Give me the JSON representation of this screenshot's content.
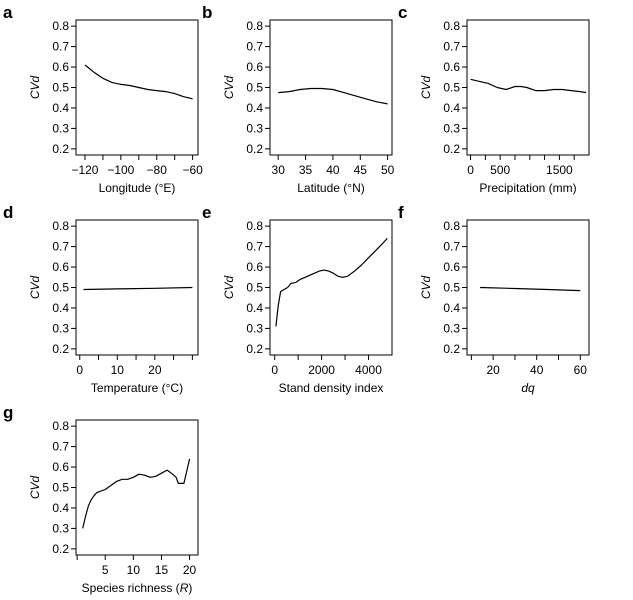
{
  "chart_data": [
    {
      "type": "line",
      "panel": "a",
      "xlabel": "Longitude (°E)",
      "ylabel": "CVd",
      "xlim": [
        -125,
        -57
      ],
      "ylim": [
        0.17,
        0.83
      ],
      "xticks": [
        -120,
        -100,
        -80,
        -60
      ],
      "xticks_labeled": [
        -120,
        -100,
        -80,
        -60
      ],
      "xticks_minor": [
        -110,
        -90,
        -70
      ],
      "yticks": [
        0.2,
        0.3,
        0.4,
        0.5,
        0.6,
        0.7,
        0.8
      ],
      "x": [
        -120,
        -115,
        -110,
        -105,
        -100,
        -95,
        -90,
        -85,
        -80,
        -75,
        -70,
        -65,
        -60
      ],
      "y": [
        0.61,
        0.575,
        0.545,
        0.525,
        0.515,
        0.51,
        0.5,
        0.49,
        0.485,
        0.48,
        0.47,
        0.455,
        0.445
      ]
    },
    {
      "type": "line",
      "panel": "b",
      "xlabel": "Latitude (°N)",
      "ylabel": "CVd",
      "xlim": [
        28.5,
        50.8
      ],
      "ylim": [
        0.17,
        0.83
      ],
      "xticks": [
        30,
        35,
        40,
        45,
        50
      ],
      "xticks_labeled": [
        30,
        35,
        40,
        45,
        50
      ],
      "xticks_minor": [],
      "yticks": [
        0.2,
        0.3,
        0.4,
        0.5,
        0.6,
        0.7,
        0.8
      ],
      "x": [
        30,
        32,
        34,
        36,
        38,
        40,
        42,
        44,
        46,
        48,
        50
      ],
      "y": [
        0.475,
        0.48,
        0.49,
        0.495,
        0.495,
        0.49,
        0.475,
        0.46,
        0.445,
        0.43,
        0.42
      ]
    },
    {
      "type": "line",
      "panel": "c",
      "xlabel": "Precipitation (mm)",
      "ylabel": "CVd",
      "xlim": [
        -60,
        2000
      ],
      "ylim": [
        0.17,
        0.83
      ],
      "xticks": [
        0,
        250,
        500,
        750,
        1000,
        1250,
        1500,
        1750
      ],
      "xticks_labeled": [
        0,
        500,
        1500
      ],
      "xticks_minor": [],
      "yticks": [
        0.2,
        0.3,
        0.4,
        0.5,
        0.6,
        0.7,
        0.8
      ],
      "x": [
        0,
        150,
        300,
        450,
        600,
        750,
        850,
        950,
        1100,
        1250,
        1400,
        1550,
        1700,
        1850,
        1950
      ],
      "y": [
        0.54,
        0.53,
        0.52,
        0.5,
        0.49,
        0.505,
        0.505,
        0.5,
        0.485,
        0.485,
        0.49,
        0.49,
        0.485,
        0.48,
        0.475
      ]
    },
    {
      "type": "line",
      "panel": "d",
      "xlabel": "Temperature (°C)",
      "ylabel": "CVd",
      "xlim": [
        -1,
        31.5
      ],
      "ylim": [
        0.17,
        0.83
      ],
      "xticks": [
        0,
        5,
        10,
        15,
        20,
        25,
        30
      ],
      "xticks_labeled": [
        0,
        10,
        20
      ],
      "xticks_minor": [],
      "yticks": [
        0.2,
        0.3,
        0.4,
        0.5,
        0.6,
        0.7,
        0.8
      ],
      "x": [
        1,
        10,
        20,
        30
      ],
      "y": [
        0.49,
        0.493,
        0.496,
        0.5
      ]
    },
    {
      "type": "line",
      "panel": "e",
      "xlabel": "Stand density index",
      "ylabel": "CVd",
      "xlim": [
        -200,
        5000
      ],
      "ylim": [
        0.17,
        0.83
      ],
      "xticks": [
        0,
        1000,
        2000,
        3000,
        4000
      ],
      "xticks_labeled": [
        0,
        2000,
        4000
      ],
      "xticks_minor": [],
      "yticks": [
        0.2,
        0.3,
        0.4,
        0.5,
        0.6,
        0.7,
        0.8
      ],
      "x": [
        50,
        150,
        250,
        400,
        550,
        700,
        900,
        1100,
        1300,
        1500,
        1700,
        1900,
        2100,
        2300,
        2500,
        2700,
        2900,
        3100,
        3400,
        3700,
        4000,
        4300,
        4600,
        4800
      ],
      "y": [
        0.31,
        0.41,
        0.48,
        0.49,
        0.5,
        0.52,
        0.525,
        0.54,
        0.55,
        0.56,
        0.57,
        0.58,
        0.585,
        0.58,
        0.57,
        0.555,
        0.55,
        0.555,
        0.58,
        0.61,
        0.645,
        0.68,
        0.715,
        0.74
      ]
    },
    {
      "type": "line",
      "panel": "f",
      "xlabel": "dq",
      "ylabel": "CVd",
      "xlim": [
        8,
        64
      ],
      "ylim": [
        0.17,
        0.83
      ],
      "xticks": [
        10,
        20,
        30,
        40,
        50,
        60
      ],
      "xticks_labeled": [
        20,
        40,
        60
      ],
      "xticks_minor": [],
      "yticks": [
        0.2,
        0.3,
        0.4,
        0.5,
        0.6,
        0.7,
        0.8
      ],
      "x": [
        14,
        30,
        45,
        60
      ],
      "y": [
        0.5,
        0.495,
        0.49,
        0.485
      ]
    },
    {
      "type": "line",
      "panel": "g",
      "xlabel": "Species richness (R)",
      "ylabel": "CVd",
      "xlim": [
        -0.2,
        21.5
      ],
      "ylim": [
        0.17,
        0.83
      ],
      "xticks": [
        0,
        5,
        10,
        15,
        20
      ],
      "xticks_labeled": [
        5,
        10,
        15,
        20
      ],
      "xticks_minor": [],
      "yticks": [
        0.2,
        0.3,
        0.4,
        0.5,
        0.6,
        0.7,
        0.8
      ],
      "x": [
        1,
        1.5,
        2,
        2.5,
        3,
        3.5,
        4,
        5,
        6,
        7,
        8,
        9,
        10,
        11,
        12,
        13,
        14,
        15,
        16,
        17,
        17.6,
        18,
        19,
        20
      ],
      "y": [
        0.3,
        0.36,
        0.41,
        0.44,
        0.46,
        0.475,
        0.48,
        0.49,
        0.51,
        0.53,
        0.54,
        0.54,
        0.55,
        0.565,
        0.56,
        0.55,
        0.555,
        0.57,
        0.585,
        0.565,
        0.55,
        0.52,
        0.52,
        0.64
      ]
    }
  ]
}
